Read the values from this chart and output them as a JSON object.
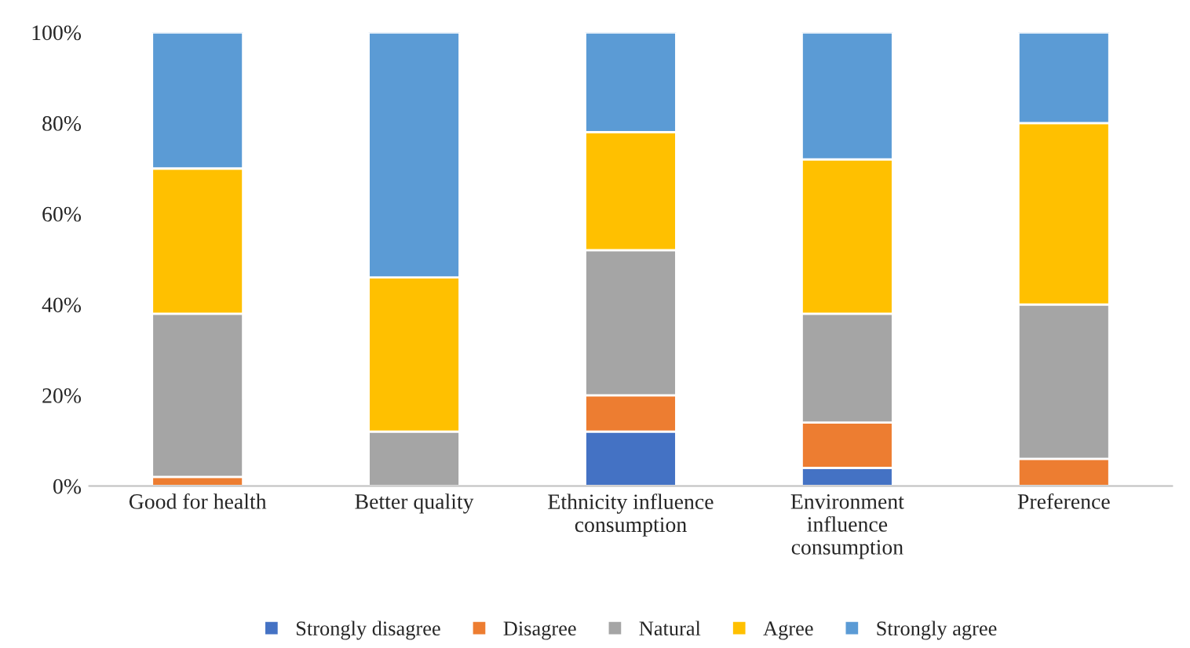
{
  "chart_data": {
    "type": "bar",
    "stacked": true,
    "categories": [
      "Good for health",
      "Better quality",
      "Ethnicity influence\nconsumption",
      "Environment\ninfluence\nconsumption",
      "Preference"
    ],
    "series": [
      {
        "name": "Strongly disagree",
        "color": "#4472c4",
        "values": [
          0,
          0,
          12,
          4,
          0
        ]
      },
      {
        "name": "Disagree",
        "color": "#ed7d31",
        "values": [
          2,
          0,
          8,
          10,
          6
        ]
      },
      {
        "name": "Natural",
        "color": "#a5a5a5",
        "values": [
          36,
          12,
          32,
          24,
          34
        ]
      },
      {
        "name": "Agree",
        "color": "#ffc000",
        "values": [
          32,
          34,
          26,
          34,
          40
        ]
      },
      {
        "name": "Strongly agree",
        "color": "#5b9bd5",
        "values": [
          30,
          54,
          22,
          28,
          20
        ]
      }
    ],
    "ylim": [
      0,
      100
    ],
    "yticks": [
      {
        "value": 0,
        "label": "0%"
      },
      {
        "value": 20,
        "label": "20%"
      },
      {
        "value": 40,
        "label": "40%"
      },
      {
        "value": 60,
        "label": "60%"
      },
      {
        "value": 80,
        "label": "80%"
      },
      {
        "value": 100,
        "label": "100%"
      }
    ],
    "legend": "bottom",
    "grid": false
  }
}
